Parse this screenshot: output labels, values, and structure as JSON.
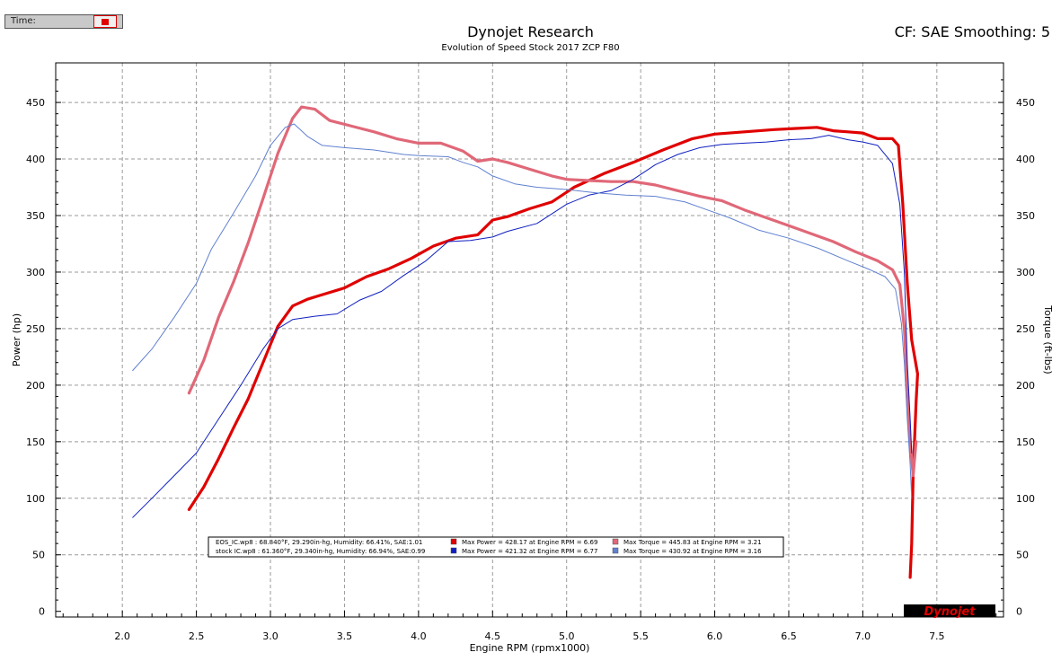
{
  "header": {
    "time_label": "Time:",
    "title": "Dynojet Research",
    "subtitle": "Evolution of Speed  Stock 2017 ZCP F80",
    "cf_label": "CF: SAE Smoothing: 5"
  },
  "logo": {
    "text": "Dynojet"
  },
  "chart_data": {
    "type": "line",
    "xlabel": "Engine RPM (rpmx1000)",
    "ylabel_left": "Power (hp)",
    "ylabel_right": "Torque (ft-lbs)",
    "xlim": [
      1.55,
      7.95
    ],
    "ylim": [
      -5,
      485
    ],
    "x_ticks": [
      2.0,
      2.5,
      3.0,
      3.5,
      4.0,
      4.5,
      5.0,
      5.5,
      6.0,
      6.5,
      7.0,
      7.5
    ],
    "y_ticks": [
      0,
      50,
      100,
      150,
      200,
      250,
      300,
      350,
      400,
      450
    ],
    "grid": true,
    "legend_position": "bottom-left",
    "series": [
      {
        "file": "EOS_IC.wp8",
        "measure": "power",
        "color": "#e00000",
        "width": 3.2,
        "points": [
          [
            2.45,
            90
          ],
          [
            2.55,
            110
          ],
          [
            2.65,
            135
          ],
          [
            2.75,
            162
          ],
          [
            2.85,
            188
          ],
          [
            2.95,
            220
          ],
          [
            3.05,
            252
          ],
          [
            3.15,
            270
          ],
          [
            3.25,
            276
          ],
          [
            3.35,
            280
          ],
          [
            3.5,
            286
          ],
          [
            3.65,
            296
          ],
          [
            3.8,
            303
          ],
          [
            3.95,
            312
          ],
          [
            4.1,
            323
          ],
          [
            4.25,
            330
          ],
          [
            4.4,
            333
          ],
          [
            4.5,
            346
          ],
          [
            4.6,
            349
          ],
          [
            4.75,
            356
          ],
          [
            4.9,
            362
          ],
          [
            5.05,
            375
          ],
          [
            5.25,
            387
          ],
          [
            5.45,
            397
          ],
          [
            5.65,
            408
          ],
          [
            5.85,
            418
          ],
          [
            6.0,
            422
          ],
          [
            6.2,
            424
          ],
          [
            6.4,
            426
          ],
          [
            6.55,
            427
          ],
          [
            6.69,
            428
          ],
          [
            6.8,
            425
          ],
          [
            6.9,
            424
          ],
          [
            7.0,
            423
          ],
          [
            7.1,
            418
          ],
          [
            7.2,
            418
          ],
          [
            7.24,
            412
          ],
          [
            7.27,
            360
          ],
          [
            7.3,
            290
          ],
          [
            7.33,
            240
          ],
          [
            7.35,
            225
          ],
          [
            7.37,
            210
          ],
          [
            7.36,
            185
          ],
          [
            7.34,
            120
          ],
          [
            7.33,
            60
          ],
          [
            7.32,
            30
          ]
        ]
      },
      {
        "file": "EOS_IC.wp8",
        "measure": "torque",
        "color": "#e06878",
        "width": 3.2,
        "points": [
          [
            2.45,
            193
          ],
          [
            2.55,
            222
          ],
          [
            2.65,
            260
          ],
          [
            2.75,
            291
          ],
          [
            2.85,
            326
          ],
          [
            2.95,
            365
          ],
          [
            3.05,
            405
          ],
          [
            3.15,
            436
          ],
          [
            3.21,
            446
          ],
          [
            3.3,
            444
          ],
          [
            3.4,
            434
          ],
          [
            3.55,
            429
          ],
          [
            3.7,
            424
          ],
          [
            3.85,
            418
          ],
          [
            4.0,
            414
          ],
          [
            4.15,
            414
          ],
          [
            4.3,
            407
          ],
          [
            4.4,
            398
          ],
          [
            4.5,
            400
          ],
          [
            4.6,
            397
          ],
          [
            4.75,
            391
          ],
          [
            4.9,
            385
          ],
          [
            5.0,
            382
          ],
          [
            5.15,
            381
          ],
          [
            5.3,
            380
          ],
          [
            5.45,
            380
          ],
          [
            5.6,
            377
          ],
          [
            5.75,
            372
          ],
          [
            5.9,
            367
          ],
          [
            6.05,
            363
          ],
          [
            6.2,
            355
          ],
          [
            6.35,
            348
          ],
          [
            6.5,
            341
          ],
          [
            6.65,
            334
          ],
          [
            6.8,
            327
          ],
          [
            6.95,
            318
          ],
          [
            7.1,
            310
          ],
          [
            7.2,
            302
          ],
          [
            7.25,
            289
          ],
          [
            7.28,
            250
          ],
          [
            7.3,
            200
          ],
          [
            7.32,
            150
          ],
          [
            7.34,
            120
          ],
          [
            7.36,
            150
          ]
        ]
      },
      {
        "file": "stock IC.wp8",
        "measure": "power",
        "color": "#1020c0",
        "width": 1,
        "points": [
          [
            2.07,
            83
          ],
          [
            2.2,
            100
          ],
          [
            2.35,
            120
          ],
          [
            2.5,
            140
          ],
          [
            2.65,
            170
          ],
          [
            2.8,
            200
          ],
          [
            2.95,
            232
          ],
          [
            3.05,
            250
          ],
          [
            3.15,
            258
          ],
          [
            3.3,
            261
          ],
          [
            3.45,
            263
          ],
          [
            3.6,
            275
          ],
          [
            3.75,
            283
          ],
          [
            3.9,
            297
          ],
          [
            4.05,
            310
          ],
          [
            4.2,
            327
          ],
          [
            4.35,
            328
          ],
          [
            4.5,
            331
          ],
          [
            4.6,
            336
          ],
          [
            4.8,
            343
          ],
          [
            5.0,
            360
          ],
          [
            5.15,
            368
          ],
          [
            5.3,
            372
          ],
          [
            5.45,
            382
          ],
          [
            5.6,
            395
          ],
          [
            5.75,
            404
          ],
          [
            5.9,
            410
          ],
          [
            6.05,
            413
          ],
          [
            6.2,
            414
          ],
          [
            6.35,
            415
          ],
          [
            6.5,
            417
          ],
          [
            6.65,
            418
          ],
          [
            6.77,
            421
          ],
          [
            6.9,
            417
          ],
          [
            7.0,
            415
          ],
          [
            7.1,
            412
          ],
          [
            7.2,
            396
          ],
          [
            7.25,
            360
          ],
          [
            7.28,
            300
          ],
          [
            7.3,
            220
          ],
          [
            7.32,
            170
          ],
          [
            7.33,
            140
          ]
        ]
      },
      {
        "file": "stock IC.wp8",
        "measure": "torque",
        "color": "#6080d0",
        "width": 1,
        "points": [
          [
            2.07,
            213
          ],
          [
            2.2,
            232
          ],
          [
            2.35,
            260
          ],
          [
            2.5,
            290
          ],
          [
            2.6,
            320
          ],
          [
            2.75,
            352
          ],
          [
            2.9,
            385
          ],
          [
            3.0,
            412
          ],
          [
            3.1,
            428
          ],
          [
            3.16,
            431
          ],
          [
            3.25,
            420
          ],
          [
            3.35,
            412
          ],
          [
            3.5,
            410
          ],
          [
            3.7,
            408
          ],
          [
            3.9,
            404
          ],
          [
            4.0,
            403
          ],
          [
            4.2,
            402
          ],
          [
            4.3,
            397
          ],
          [
            4.4,
            393
          ],
          [
            4.5,
            385
          ],
          [
            4.65,
            378
          ],
          [
            4.8,
            375
          ],
          [
            5.0,
            373
          ],
          [
            5.2,
            370
          ],
          [
            5.4,
            368
          ],
          [
            5.6,
            367
          ],
          [
            5.8,
            362
          ],
          [
            5.95,
            355
          ],
          [
            6.1,
            348
          ],
          [
            6.3,
            337
          ],
          [
            6.5,
            330
          ],
          [
            6.7,
            321
          ],
          [
            6.9,
            310
          ],
          [
            7.05,
            302
          ],
          [
            7.15,
            296
          ],
          [
            7.22,
            285
          ],
          [
            7.26,
            255
          ],
          [
            7.28,
            220
          ],
          [
            7.3,
            170
          ],
          [
            7.32,
            130
          ],
          [
            7.33,
            100
          ]
        ]
      }
    ],
    "legend_entries": [
      {
        "color_power": "#e00000",
        "color_torque": "#e06878",
        "conditions": "EOS_IC.wp8  : 68.840°F, 29.290in-hg, Humidity: 66.41%, SAE:1.01",
        "max_power": "Max Power = 428.17 at Engine RPM = 6.69",
        "max_torque": "Max Torque = 445.83 at Engine RPM = 3.21"
      },
      {
        "color_power": "#1020c0",
        "color_torque": "#6080d0",
        "conditions": "stock IC.wp8 : 61.360°F, 29.340in-hg, Humidity: 66.94%, SAE:0.99",
        "max_power": "Max Power = 421.32 at Engine RPM = 6.77",
        "max_torque": "Max Torque = 430.92 at Engine RPM = 3.16"
      }
    ]
  }
}
